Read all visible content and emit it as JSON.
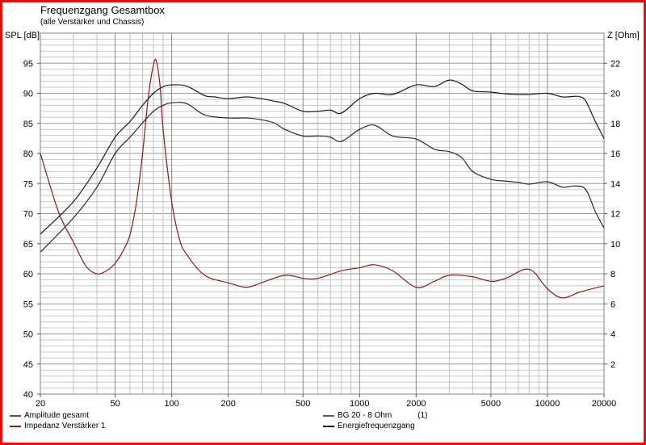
{
  "chart_data": {
    "type": "line",
    "title": "Frequenzgang Gesamtbox",
    "subtitle": "(alle Verstärker und Chassis)",
    "ylabel": "SPL [dB]",
    "y2label": "Z [Ohm]",
    "xscale": "log",
    "xlim": [
      20,
      20000
    ],
    "ylim": [
      40,
      100
    ],
    "y2lim": [
      0,
      24
    ],
    "grid": true,
    "x_ticks": [
      "20",
      "50",
      "100",
      "200",
      "500",
      "1000",
      "2000",
      "5000",
      "10000",
      "20000"
    ],
    "y_ticks": [
      "40",
      "45",
      "50",
      "55",
      "60",
      "65",
      "70",
      "75",
      "80",
      "85",
      "90",
      "95"
    ],
    "y2_ticks": [
      "2",
      "4",
      "6",
      "8",
      "10",
      "12",
      "14",
      "16",
      "18",
      "20",
      "22"
    ],
    "legend_position": "bottom",
    "legend": [
      {
        "label": "Amplitude gesamt",
        "color": "#555555"
      },
      {
        "label": "Impedanz Verstärker 1",
        "color": "#8b1a1a"
      },
      {
        "label": "BG 20 - 8 Ohm",
        "note": "(1)",
        "color": "#5a5a9a"
      },
      {
        "label": "Energiefrequenzgang",
        "color": "#000000"
      }
    ],
    "series": [
      {
        "name": "Energiefrequenzgang",
        "axis": "left",
        "color": "#1a1a1a",
        "x": [
          20,
          30,
          40,
          50,
          60,
          70,
          80,
          90,
          100,
          120,
          150,
          170,
          200,
          250,
          300,
          350,
          400,
          500,
          600,
          700,
          800,
          1000,
          1200,
          1500,
          2000,
          2500,
          3000,
          3500,
          4000,
          5000,
          6000,
          7000,
          8000,
          10000,
          12000,
          14000,
          15000,
          16000,
          18000,
          20000
        ],
        "y": [
          66.6,
          72,
          77.6,
          82.7,
          85.3,
          88,
          90,
          91.1,
          91.4,
          91.2,
          89.6,
          89.4,
          89.1,
          89.4,
          89.1,
          88.7,
          88.3,
          87,
          87,
          87.2,
          86.7,
          89.1,
          90,
          89.8,
          91.4,
          91.1,
          92.2,
          91.5,
          90.4,
          90.2,
          89.9,
          89.8,
          89.8,
          90,
          89.4,
          89.5,
          89.4,
          88.7,
          85.3,
          82.5
        ]
      },
      {
        "name": "Amplitude gesamt",
        "axis": "left",
        "color": "#2a2a2a",
        "x": [
          20,
          30,
          40,
          50,
          60,
          70,
          80,
          90,
          100,
          120,
          150,
          200,
          250,
          300,
          350,
          400,
          500,
          600,
          700,
          800,
          1000,
          1200,
          1500,
          2000,
          2500,
          3000,
          3500,
          4000,
          5000,
          6000,
          7000,
          8000,
          10000,
          12000,
          14000,
          16000,
          18000,
          20000
        ],
        "y": [
          63.6,
          69.3,
          74.4,
          80,
          82.7,
          85.1,
          87,
          88,
          88.4,
          88.3,
          86.4,
          85.9,
          85.9,
          85.6,
          85.1,
          84,
          82.9,
          82.9,
          82.7,
          82,
          84,
          84.7,
          82.9,
          82.4,
          80.7,
          80.3,
          79.3,
          77,
          75.7,
          75.4,
          75.2,
          74.9,
          75.3,
          74.4,
          74.6,
          74,
          70.3,
          67.6
        ]
      },
      {
        "name": "Impedanz Verstärker 1",
        "axis": "right",
        "color": "#8b1a1a",
        "x": [
          20,
          25,
          30,
          35,
          40,
          45,
          50,
          55,
          60,
          65,
          70,
          75,
          80,
          83,
          87,
          90,
          100,
          110,
          120,
          150,
          200,
          250,
          300,
          400,
          500,
          600,
          800,
          1000,
          1200,
          1500,
          2000,
          2500,
          3000,
          4000,
          5000,
          6000,
          8000,
          10000,
          12000,
          15000,
          20000
        ],
        "y": [
          16,
          12.1,
          10.1,
          8.5,
          8,
          8.2,
          8.7,
          9.5,
          10.6,
          12.8,
          16,
          19.7,
          21.9,
          22.1,
          20.3,
          17.6,
          12.8,
          10.3,
          9.3,
          7.9,
          7.4,
          7.1,
          7.4,
          7.9,
          7.7,
          7.7,
          8.2,
          8.4,
          8.6,
          8.2,
          7.1,
          7.5,
          7.9,
          7.8,
          7.5,
          7.7,
          8.3,
          7,
          6.4,
          6.8,
          7.2
        ]
      }
    ]
  }
}
